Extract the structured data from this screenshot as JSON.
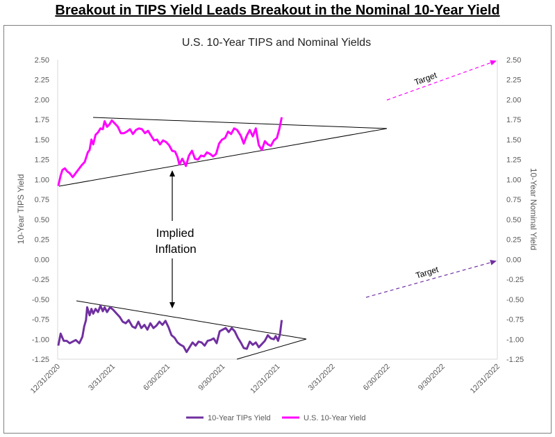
{
  "headline": "Breakout in TIPS Yield Leads Breakout in the Nominal 10-Year Yield",
  "chart_data": {
    "type": "line",
    "title": "U.S. 10-Year TIPS and Nominal Yields",
    "ylabel_left": "10-Year TIPS Yield",
    "ylabel_right": "10-Year Nominal Yield",
    "ylim": [
      -1.25,
      2.5
    ],
    "y_ticks": [
      "2.50",
      "2.25",
      "2.00",
      "1.75",
      "1.50",
      "1.25",
      "1.00",
      "0.75",
      "0.50",
      "0.25",
      "0.00",
      "-0.25",
      "-0.50",
      "-0.75",
      "-1.00",
      "-1.25"
    ],
    "x_ticks": [
      "12/31/2020",
      "3/31/2021",
      "6/30/2021",
      "9/30/2021",
      "12/31/2021",
      "3/31/2022",
      "6/30/2022",
      "9/30/2022",
      "12/31/2022"
    ],
    "series": [
      {
        "name": "10-Year TIPs Yield",
        "color": "#7030a0",
        "points": [
          [
            "2021-01-01",
            -1.08
          ],
          [
            "2021-01-05",
            -0.93
          ],
          [
            "2021-01-10",
            -1.02
          ],
          [
            "2021-01-15",
            -1.02
          ],
          [
            "2021-01-20",
            -1.05
          ],
          [
            "2021-01-25",
            -1.03
          ],
          [
            "2021-01-30",
            -1.01
          ],
          [
            "2021-02-05",
            -1.05
          ],
          [
            "2021-02-10",
            -0.97
          ],
          [
            "2021-02-13",
            -0.84
          ],
          [
            "2021-02-16",
            -0.76
          ],
          [
            "2021-02-18",
            -0.6
          ],
          [
            "2021-02-22",
            -0.7
          ],
          [
            "2021-02-25",
            -0.62
          ],
          [
            "2021-02-28",
            -0.68
          ],
          [
            "2021-03-04",
            -0.62
          ],
          [
            "2021-03-08",
            -0.66
          ],
          [
            "2021-03-12",
            -0.58
          ],
          [
            "2021-03-16",
            -0.65
          ],
          [
            "2021-03-19",
            -0.6
          ],
          [
            "2021-03-23",
            -0.66
          ],
          [
            "2021-03-28",
            -0.6
          ],
          [
            "2021-04-02",
            -0.63
          ],
          [
            "2021-04-08",
            -0.68
          ],
          [
            "2021-04-13",
            -0.72
          ],
          [
            "2021-04-18",
            -0.78
          ],
          [
            "2021-04-23",
            -0.8
          ],
          [
            "2021-04-28",
            -0.76
          ],
          [
            "2021-05-04",
            -0.84
          ],
          [
            "2021-05-09",
            -0.86
          ],
          [
            "2021-05-14",
            -0.78
          ],
          [
            "2021-05-19",
            -0.86
          ],
          [
            "2021-05-24",
            -0.82
          ],
          [
            "2021-05-29",
            -0.88
          ],
          [
            "2021-06-03",
            -0.8
          ],
          [
            "2021-06-08",
            -0.86
          ],
          [
            "2021-06-13",
            -0.83
          ],
          [
            "2021-06-18",
            -0.78
          ],
          [
            "2021-06-23",
            -0.82
          ],
          [
            "2021-06-28",
            -0.77
          ],
          [
            "2021-07-03",
            -0.85
          ],
          [
            "2021-07-08",
            -0.95
          ],
          [
            "2021-07-13",
            -0.98
          ],
          [
            "2021-07-18",
            -1.04
          ],
          [
            "2021-07-23",
            -1.07
          ],
          [
            "2021-07-28",
            -1.09
          ],
          [
            "2021-08-02",
            -1.16
          ],
          [
            "2021-08-07",
            -1.1
          ],
          [
            "2021-08-12",
            -1.04
          ],
          [
            "2021-08-17",
            -1.08
          ],
          [
            "2021-08-22",
            -1.03
          ],
          [
            "2021-08-27",
            -1.04
          ],
          [
            "2021-09-01",
            -1.08
          ],
          [
            "2021-09-06",
            -1.02
          ],
          [
            "2021-09-11",
            -1.01
          ],
          [
            "2021-09-16",
            -0.99
          ],
          [
            "2021-09-21",
            -1.05
          ],
          [
            "2021-09-26",
            -0.9
          ],
          [
            "2021-10-01",
            -0.88
          ],
          [
            "2021-10-06",
            -0.86
          ],
          [
            "2021-10-11",
            -0.91
          ],
          [
            "2021-10-16",
            -0.86
          ],
          [
            "2021-10-21",
            -0.9
          ],
          [
            "2021-10-26",
            -0.98
          ],
          [
            "2021-10-31",
            -1.04
          ],
          [
            "2021-11-05",
            -1.11
          ],
          [
            "2021-11-10",
            -1.12
          ],
          [
            "2021-11-15",
            -1.03
          ],
          [
            "2021-11-20",
            -1.07
          ],
          [
            "2021-11-25",
            -1.04
          ],
          [
            "2021-11-30",
            -1.1
          ],
          [
            "2021-12-05",
            -1.06
          ],
          [
            "2021-12-10",
            -1.02
          ],
          [
            "2021-12-15",
            -0.95
          ],
          [
            "2021-12-20",
            -0.99
          ],
          [
            "2021-12-25",
            -1.0
          ],
          [
            "2021-12-28",
            -0.96
          ],
          [
            "2022-01-01",
            -1.02
          ],
          [
            "2022-01-04",
            -0.94
          ],
          [
            "2022-01-07",
            -0.76
          ]
        ]
      },
      {
        "name": "U.S. 10-Year Yield",
        "color": "#ff00ff",
        "points": [
          [
            "2021-01-01",
            0.92
          ],
          [
            "2021-01-05",
            1.05
          ],
          [
            "2021-01-08",
            1.12
          ],
          [
            "2021-01-12",
            1.14
          ],
          [
            "2021-01-16",
            1.1
          ],
          [
            "2021-01-20",
            1.08
          ],
          [
            "2021-01-25",
            1.03
          ],
          [
            "2021-01-30",
            1.08
          ],
          [
            "2021-02-04",
            1.13
          ],
          [
            "2021-02-09",
            1.18
          ],
          [
            "2021-02-14",
            1.22
          ],
          [
            "2021-02-19",
            1.34
          ],
          [
            "2021-02-22",
            1.37
          ],
          [
            "2021-02-25",
            1.5
          ],
          [
            "2021-02-28",
            1.44
          ],
          [
            "2021-03-04",
            1.56
          ],
          [
            "2021-03-08",
            1.59
          ],
          [
            "2021-03-12",
            1.64
          ],
          [
            "2021-03-16",
            1.63
          ],
          [
            "2021-03-19",
            1.73
          ],
          [
            "2021-03-23",
            1.66
          ],
          [
            "2021-03-27",
            1.69
          ],
          [
            "2021-03-31",
            1.74
          ],
          [
            "2021-04-05",
            1.7
          ],
          [
            "2021-04-10",
            1.66
          ],
          [
            "2021-04-15",
            1.58
          ],
          [
            "2021-04-20",
            1.58
          ],
          [
            "2021-04-25",
            1.6
          ],
          [
            "2021-04-30",
            1.63
          ],
          [
            "2021-05-05",
            1.57
          ],
          [
            "2021-05-10",
            1.62
          ],
          [
            "2021-05-15",
            1.64
          ],
          [
            "2021-05-20",
            1.63
          ],
          [
            "2021-05-25",
            1.58
          ],
          [
            "2021-05-30",
            1.61
          ],
          [
            "2021-06-04",
            1.55
          ],
          [
            "2021-06-09",
            1.49
          ],
          [
            "2021-06-14",
            1.5
          ],
          [
            "2021-06-19",
            1.44
          ],
          [
            "2021-06-24",
            1.49
          ],
          [
            "2021-06-29",
            1.47
          ],
          [
            "2021-07-04",
            1.43
          ],
          [
            "2021-07-09",
            1.36
          ],
          [
            "2021-07-14",
            1.35
          ],
          [
            "2021-07-18",
            1.28
          ],
          [
            "2021-07-21",
            1.19
          ],
          [
            "2021-07-26",
            1.26
          ],
          [
            "2021-08-01",
            1.17
          ],
          [
            "2021-08-06",
            1.3
          ],
          [
            "2021-08-11",
            1.36
          ],
          [
            "2021-08-16",
            1.26
          ],
          [
            "2021-08-21",
            1.25
          ],
          [
            "2021-08-26",
            1.3
          ],
          [
            "2021-08-31",
            1.29
          ],
          [
            "2021-09-05",
            1.34
          ],
          [
            "2021-09-10",
            1.32
          ],
          [
            "2021-09-15",
            1.29
          ],
          [
            "2021-09-20",
            1.32
          ],
          [
            "2021-09-25",
            1.45
          ],
          [
            "2021-09-30",
            1.5
          ],
          [
            "2021-10-05",
            1.52
          ],
          [
            "2021-10-10",
            1.6
          ],
          [
            "2021-10-15",
            1.57
          ],
          [
            "2021-10-20",
            1.64
          ],
          [
            "2021-10-25",
            1.62
          ],
          [
            "2021-10-31",
            1.55
          ],
          [
            "2021-11-05",
            1.45
          ],
          [
            "2021-11-10",
            1.55
          ],
          [
            "2021-11-15",
            1.62
          ],
          [
            "2021-11-20",
            1.54
          ],
          [
            "2021-11-25",
            1.64
          ],
          [
            "2021-11-30",
            1.43
          ],
          [
            "2021-12-05",
            1.37
          ],
          [
            "2021-12-10",
            1.48
          ],
          [
            "2021-12-15",
            1.44
          ],
          [
            "2021-12-20",
            1.42
          ],
          [
            "2021-12-25",
            1.49
          ],
          [
            "2021-12-30",
            1.52
          ],
          [
            "2022-01-03",
            1.63
          ],
          [
            "2022-01-07",
            1.78
          ]
        ]
      }
    ],
    "annotations": {
      "middle_label": [
        "Implied",
        "Inflation"
      ],
      "target_label": "Target"
    },
    "legend_position": "bottom",
    "grid": false
  }
}
